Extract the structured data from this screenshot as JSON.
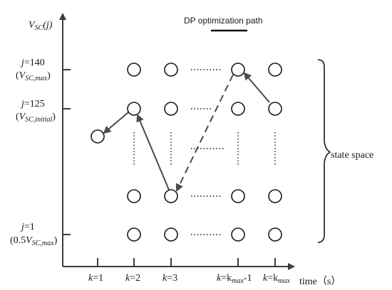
{
  "y_axis": {
    "label_main": "V",
    "label_sub": "SC",
    "label_tail": "(j)"
  },
  "x_axis": {
    "label": "time（s）"
  },
  "title": "DP optimization path",
  "state_space_label": "state space",
  "y_ticks": [
    {
      "line1": {
        "pre": "j",
        "rest": "=140"
      },
      "line2": {
        "open": "(",
        "v": "V",
        "sub": "SC,max",
        "close": ")"
      }
    },
    {
      "line1": {
        "pre": "j",
        "rest": "=125"
      },
      "line2": {
        "open": "(",
        "v": "V",
        "sub": "SC,initial",
        "close": ")"
      }
    },
    {
      "line1": {
        "pre": "j",
        "rest": "=1"
      },
      "line2": {
        "open": "(0.5",
        "v": "V",
        "sub": "SC,max",
        "close": ")"
      }
    }
  ],
  "x_ticks": [
    {
      "pre": "k",
      "rest": "=1"
    },
    {
      "pre": "k",
      "rest": "=2"
    },
    {
      "pre": "k",
      "rest": "=3"
    },
    {
      "pre": "k",
      "rest": "=k",
      "sub": "max",
      "tail": "-1"
    },
    {
      "pre": "k",
      "rest": "=k",
      "sub": "max",
      "tail": ""
    }
  ],
  "colors": {
    "axis": "#3c3c3c",
    "path": "#4a4a4a",
    "node": "#1a1a1a"
  }
}
